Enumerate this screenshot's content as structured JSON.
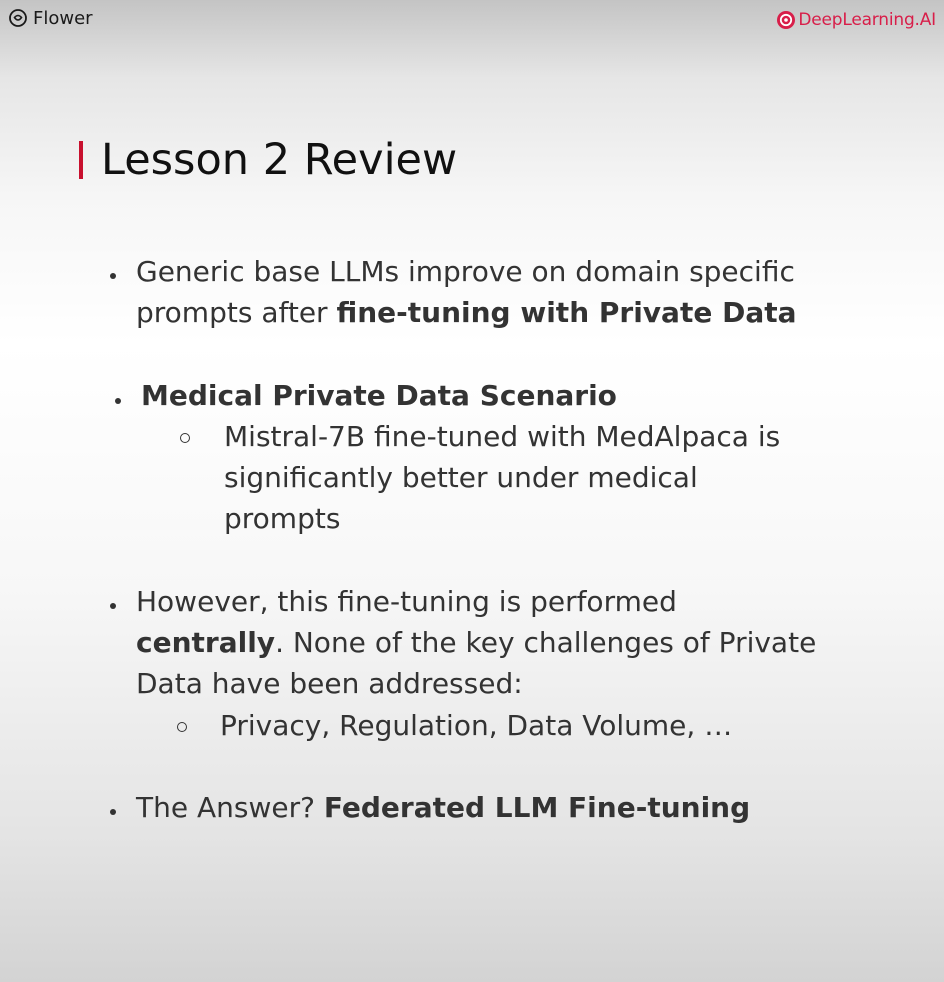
{
  "header": {
    "left_brand": "Flower",
    "right_brand": "DeepLearning.AI",
    "brand_color": "#d81e49",
    "accent_color": "#c8102e"
  },
  "slide": {
    "title": "Lesson 2 Review",
    "bullets": [
      {
        "line1": "Generic base LLMs improve on domain specific",
        "line2_normal": "prompts after ",
        "line2_bold": "fine-tuning with Private Data"
      },
      {
        "heading": "Medical Private Data Scenario",
        "sub": {
          "line1": "Mistral-7B fine-tuned with MedAlpaca is",
          "line2": "significantly better under medical",
          "line3": "prompts"
        }
      },
      {
        "line1": "However, this fine-tuning is performed",
        "line2_bold": "centrally",
        "line2_normal": ". None of the key challenges of Private",
        "line3": "Data have been addressed:",
        "sub": "Privacy, Regulation, Data Volume, …"
      },
      {
        "normal": "The Answer? ",
        "bold": "Federated LLM Fine-tuning"
      }
    ]
  }
}
